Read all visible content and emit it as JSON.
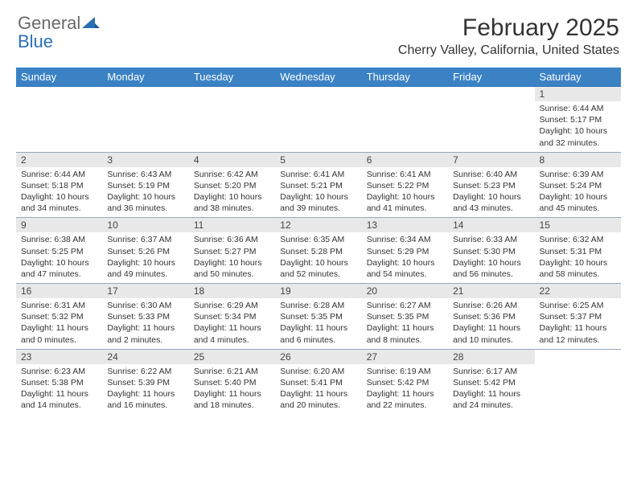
{
  "logo": {
    "word1": "General",
    "word2": "Blue"
  },
  "title": "February 2025",
  "location": "Cherry Valley, California, United States",
  "colors": {
    "header_bg": "#3b82c4",
    "header_text": "#ffffff",
    "daynum_bg": "#e8e8e8",
    "border": "#98a8b8",
    "brand_gray": "#6a6a6a",
    "brand_blue": "#2a6fb5",
    "body_text": "#333333"
  },
  "day_headers": [
    "Sunday",
    "Monday",
    "Tuesday",
    "Wednesday",
    "Thursday",
    "Friday",
    "Saturday"
  ],
  "weeks": [
    [
      null,
      null,
      null,
      null,
      null,
      null,
      {
        "n": "1",
        "sunrise": "Sunrise: 6:44 AM",
        "sunset": "Sunset: 5:17 PM",
        "daylight": "Daylight: 10 hours and 32 minutes."
      }
    ],
    [
      {
        "n": "2",
        "sunrise": "Sunrise: 6:44 AM",
        "sunset": "Sunset: 5:18 PM",
        "daylight": "Daylight: 10 hours and 34 minutes."
      },
      {
        "n": "3",
        "sunrise": "Sunrise: 6:43 AM",
        "sunset": "Sunset: 5:19 PM",
        "daylight": "Daylight: 10 hours and 36 minutes."
      },
      {
        "n": "4",
        "sunrise": "Sunrise: 6:42 AM",
        "sunset": "Sunset: 5:20 PM",
        "daylight": "Daylight: 10 hours and 38 minutes."
      },
      {
        "n": "5",
        "sunrise": "Sunrise: 6:41 AM",
        "sunset": "Sunset: 5:21 PM",
        "daylight": "Daylight: 10 hours and 39 minutes."
      },
      {
        "n": "6",
        "sunrise": "Sunrise: 6:41 AM",
        "sunset": "Sunset: 5:22 PM",
        "daylight": "Daylight: 10 hours and 41 minutes."
      },
      {
        "n": "7",
        "sunrise": "Sunrise: 6:40 AM",
        "sunset": "Sunset: 5:23 PM",
        "daylight": "Daylight: 10 hours and 43 minutes."
      },
      {
        "n": "8",
        "sunrise": "Sunrise: 6:39 AM",
        "sunset": "Sunset: 5:24 PM",
        "daylight": "Daylight: 10 hours and 45 minutes."
      }
    ],
    [
      {
        "n": "9",
        "sunrise": "Sunrise: 6:38 AM",
        "sunset": "Sunset: 5:25 PM",
        "daylight": "Daylight: 10 hours and 47 minutes."
      },
      {
        "n": "10",
        "sunrise": "Sunrise: 6:37 AM",
        "sunset": "Sunset: 5:26 PM",
        "daylight": "Daylight: 10 hours and 49 minutes."
      },
      {
        "n": "11",
        "sunrise": "Sunrise: 6:36 AM",
        "sunset": "Sunset: 5:27 PM",
        "daylight": "Daylight: 10 hours and 50 minutes."
      },
      {
        "n": "12",
        "sunrise": "Sunrise: 6:35 AM",
        "sunset": "Sunset: 5:28 PM",
        "daylight": "Daylight: 10 hours and 52 minutes."
      },
      {
        "n": "13",
        "sunrise": "Sunrise: 6:34 AM",
        "sunset": "Sunset: 5:29 PM",
        "daylight": "Daylight: 10 hours and 54 minutes."
      },
      {
        "n": "14",
        "sunrise": "Sunrise: 6:33 AM",
        "sunset": "Sunset: 5:30 PM",
        "daylight": "Daylight: 10 hours and 56 minutes."
      },
      {
        "n": "15",
        "sunrise": "Sunrise: 6:32 AM",
        "sunset": "Sunset: 5:31 PM",
        "daylight": "Daylight: 10 hours and 58 minutes."
      }
    ],
    [
      {
        "n": "16",
        "sunrise": "Sunrise: 6:31 AM",
        "sunset": "Sunset: 5:32 PM",
        "daylight": "Daylight: 11 hours and 0 minutes."
      },
      {
        "n": "17",
        "sunrise": "Sunrise: 6:30 AM",
        "sunset": "Sunset: 5:33 PM",
        "daylight": "Daylight: 11 hours and 2 minutes."
      },
      {
        "n": "18",
        "sunrise": "Sunrise: 6:29 AM",
        "sunset": "Sunset: 5:34 PM",
        "daylight": "Daylight: 11 hours and 4 minutes."
      },
      {
        "n": "19",
        "sunrise": "Sunrise: 6:28 AM",
        "sunset": "Sunset: 5:35 PM",
        "daylight": "Daylight: 11 hours and 6 minutes."
      },
      {
        "n": "20",
        "sunrise": "Sunrise: 6:27 AM",
        "sunset": "Sunset: 5:35 PM",
        "daylight": "Daylight: 11 hours and 8 minutes."
      },
      {
        "n": "21",
        "sunrise": "Sunrise: 6:26 AM",
        "sunset": "Sunset: 5:36 PM",
        "daylight": "Daylight: 11 hours and 10 minutes."
      },
      {
        "n": "22",
        "sunrise": "Sunrise: 6:25 AM",
        "sunset": "Sunset: 5:37 PM",
        "daylight": "Daylight: 11 hours and 12 minutes."
      }
    ],
    [
      {
        "n": "23",
        "sunrise": "Sunrise: 6:23 AM",
        "sunset": "Sunset: 5:38 PM",
        "daylight": "Daylight: 11 hours and 14 minutes."
      },
      {
        "n": "24",
        "sunrise": "Sunrise: 6:22 AM",
        "sunset": "Sunset: 5:39 PM",
        "daylight": "Daylight: 11 hours and 16 minutes."
      },
      {
        "n": "25",
        "sunrise": "Sunrise: 6:21 AM",
        "sunset": "Sunset: 5:40 PM",
        "daylight": "Daylight: 11 hours and 18 minutes."
      },
      {
        "n": "26",
        "sunrise": "Sunrise: 6:20 AM",
        "sunset": "Sunset: 5:41 PM",
        "daylight": "Daylight: 11 hours and 20 minutes."
      },
      {
        "n": "27",
        "sunrise": "Sunrise: 6:19 AM",
        "sunset": "Sunset: 5:42 PM",
        "daylight": "Daylight: 11 hours and 22 minutes."
      },
      {
        "n": "28",
        "sunrise": "Sunrise: 6:17 AM",
        "sunset": "Sunset: 5:42 PM",
        "daylight": "Daylight: 11 hours and 24 minutes."
      },
      null
    ]
  ]
}
